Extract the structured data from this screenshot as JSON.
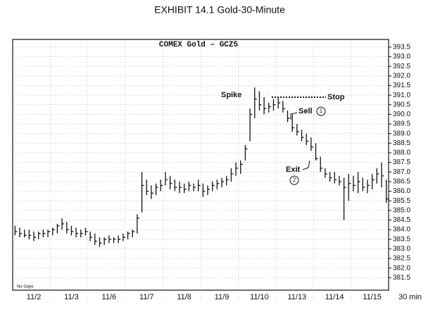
{
  "chart_data": {
    "type": "ohlc",
    "title": "EXHIBIT 14.1 Gold-30-Minute",
    "subtitle": "COMEX Gold – GCZ5",
    "x_unit": "30 min",
    "note": "No Gaps",
    "annotations": {
      "spike": "Spike",
      "stop": "Stop",
      "sell": "Sell",
      "sell_number": "1",
      "exit": "Exit",
      "exit_number": "2"
    },
    "categories": [
      null,
      null,
      null,
      null,
      "11/2",
      null,
      null,
      null,
      null,
      null,
      null,
      null,
      "11/3",
      null,
      null,
      null,
      null,
      null,
      null,
      null,
      "11/6",
      null,
      null,
      null,
      null,
      null,
      null,
      null,
      "11/7",
      null,
      null,
      null,
      null,
      null,
      null,
      null,
      "11/8",
      null,
      null,
      null,
      null,
      null,
      null,
      null,
      "11/9",
      null,
      null,
      null,
      null,
      null,
      null,
      null,
      "11/10",
      null,
      null,
      null,
      null,
      null,
      null,
      null,
      "11/13",
      null,
      null,
      null,
      null,
      null,
      null,
      null,
      "11/14",
      null,
      null,
      null,
      null,
      null,
      null,
      null,
      "11/15",
      null,
      null,
      null
    ],
    "color": "#111111",
    "high": [
      384.2,
      384.1,
      384.0,
      384.0,
      383.9,
      383.9,
      384.0,
      384.0,
      384.1,
      384.3,
      384.6,
      384.4,
      384.2,
      384.1,
      384.0,
      384.1,
      383.9,
      383.8,
      383.6,
      383.6,
      383.7,
      383.6,
      383.7,
      383.8,
      383.9,
      384.0,
      384.8,
      387.0,
      386.6,
      386.3,
      386.4,
      386.6,
      387.0,
      386.8,
      386.6,
      386.5,
      386.4,
      386.5,
      386.4,
      386.6,
      386.4,
      386.3,
      386.5,
      386.6,
      386.7,
      386.8,
      387.2,
      387.5,
      387.6,
      388.4,
      390.3,
      391.4,
      391.2,
      390.9,
      390.6,
      390.8,
      390.9,
      390.7,
      390.2,
      390.0,
      389.5,
      389.2,
      389.0,
      388.8,
      388.5,
      387.8,
      387.2,
      387.0,
      387.0,
      386.8,
      386.7,
      386.9,
      386.8,
      387.0,
      386.7,
      386.6,
      386.9,
      387.2,
      387.5,
      386.6
    ],
    "low": [
      383.7,
      383.6,
      383.6,
      383.5,
      383.4,
      383.5,
      383.6,
      383.6,
      383.7,
      383.8,
      384.0,
      383.8,
      383.7,
      383.6,
      383.6,
      383.7,
      383.4,
      383.2,
      383.1,
      383.2,
      383.3,
      383.3,
      383.3,
      383.4,
      383.5,
      383.6,
      383.8,
      384.9,
      385.8,
      385.6,
      385.8,
      386.0,
      386.3,
      386.1,
      386.0,
      385.9,
      385.9,
      386.0,
      386.0,
      386.0,
      385.7,
      385.8,
      386.0,
      386.1,
      386.2,
      386.3,
      386.5,
      386.8,
      386.9,
      387.6,
      388.6,
      389.8,
      390.2,
      390.0,
      390.1,
      390.2,
      390.3,
      390.1,
      389.6,
      389.1,
      388.9,
      388.6,
      388.4,
      388.1,
      387.6,
      387.0,
      386.7,
      386.5,
      386.4,
      386.3,
      384.5,
      385.5,
      386.0,
      385.9,
      386.0,
      385.9,
      386.1,
      386.4,
      386.2,
      385.4
    ],
    "close": [
      383.9,
      383.8,
      383.7,
      383.7,
      383.6,
      383.8,
      383.8,
      383.9,
      384.0,
      384.2,
      384.3,
      384.0,
      383.9,
      383.8,
      383.8,
      383.9,
      383.6,
      383.4,
      383.3,
      383.5,
      383.5,
      383.5,
      383.5,
      383.6,
      383.8,
      383.9,
      384.6,
      386.3,
      386.0,
      385.9,
      386.2,
      386.3,
      386.6,
      386.4,
      386.2,
      386.2,
      386.1,
      386.3,
      386.2,
      386.3,
      386.0,
      386.1,
      386.3,
      386.4,
      386.5,
      386.6,
      386.9,
      387.2,
      387.4,
      388.2,
      390.0,
      390.8,
      390.5,
      390.3,
      390.4,
      390.5,
      390.6,
      390.3,
      389.8,
      389.3,
      389.1,
      388.8,
      388.6,
      388.3,
      387.7,
      387.2,
      386.9,
      386.7,
      386.6,
      386.5,
      386.2,
      386.4,
      386.3,
      386.5,
      386.2,
      386.3,
      386.6,
      386.9,
      386.8,
      385.6
    ],
    "ylim": [
      380.85,
      393.9
    ],
    "yticks": [
      381.5,
      {
        "value": 382,
        "label": "382.0"
      },
      382.5,
      {
        "value": 383,
        "label": "383.0"
      },
      383.5,
      {
        "value": 384,
        "label": "384.0"
      },
      384.5,
      {
        "value": 385,
        "label": "385.0"
      },
      385.5,
      {
        "value": 386,
        "label": "386.0"
      },
      386.5,
      {
        "value": 387,
        "label": "387.0"
      },
      387.5,
      {
        "value": 388,
        "label": "388.0"
      },
      388.5,
      {
        "value": 389,
        "label": "389.0"
      },
      389.5,
      {
        "value": 390,
        "label": "390.0"
      },
      390.5,
      {
        "value": 391,
        "label": "391.0"
      },
      391.5,
      {
        "value": 392,
        "label": "392.0"
      },
      392.5,
      {
        "value": 393,
        "label": "393.0"
      },
      393.5
    ],
    "grid": true
  }
}
